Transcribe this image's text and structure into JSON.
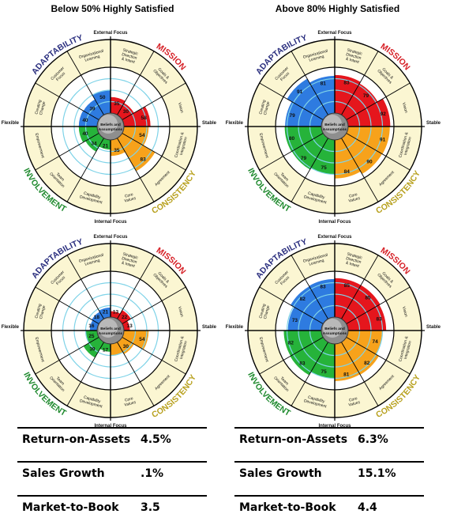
{
  "columns": [
    {
      "title": "Below 50% Highly Satisfied"
    },
    {
      "title": "Above 80% Highly Satisfied"
    }
  ],
  "labels": {
    "external": "External Focus",
    "internal": "Internal Focus",
    "flexible": "Flexible",
    "stable": "Stable",
    "center": [
      "Beliefs and",
      "Assumptions"
    ],
    "traits": [
      "ADAPTABILITY",
      "MISSION",
      "CONSISTENCY",
      "INVOLVEMENT"
    ]
  },
  "indices": [
    {
      "lines": [
        "Strategic",
        "Direction",
        "& Intent"
      ]
    },
    {
      "lines": [
        "Goals &",
        "Objectives"
      ]
    },
    {
      "lines": [
        "Vision"
      ]
    },
    {
      "lines": [
        "Coordination &",
        "Integration"
      ]
    },
    {
      "lines": [
        "Agreement"
      ]
    },
    {
      "lines": [
        "Core",
        "Values"
      ]
    },
    {
      "lines": [
        "Capability",
        "Development"
      ]
    },
    {
      "lines": [
        "Team",
        "Orientation"
      ]
    },
    {
      "lines": [
        "Empowerment"
      ]
    },
    {
      "lines": [
        "Creating",
        "Change"
      ]
    },
    {
      "lines": [
        "Customer",
        "Focus"
      ]
    },
    {
      "lines": [
        "Organizational",
        "Learning"
      ]
    }
  ],
  "colors": {
    "mission": "#e5161d",
    "consistency": "#f7a21b",
    "involvement": "#26b33a",
    "adaptability": "#2e7be0",
    "mission_text": "#d61f26",
    "consistency_text": "#b8a11f",
    "involvement_text": "#1f8a2e",
    "adaptability_text": "#2b2f7f",
    "ring": "#fbf6d2",
    "grid": "#7fd3e8"
  },
  "chart_data": [
    {
      "type": "radial",
      "title": "Below 50% Highly Satisfied",
      "values": [
        35,
        30,
        58,
        54,
        83,
        35,
        21,
        34,
        40,
        40,
        39,
        50
      ],
      "value_labels": [
        "35",
        "30",
        "58",
        "54",
        "83",
        "35",
        "21",
        "34",
        "40",
        "40",
        "39",
        "50"
      ]
    },
    {
      "type": "radial",
      "title": "Above 80% Highly Satisfied",
      "values": [
        83,
        79,
        92,
        91,
        90,
        84,
        75,
        79,
        80,
        79,
        91,
        81
      ],
      "value_labels": [
        "83",
        "79",
        "92",
        "91",
        "90",
        "84",
        "75",
        "79",
        "80",
        "79",
        "91",
        "81"
      ]
    },
    {
      "type": "radial",
      "title": "",
      "values": [
        13,
        22,
        13,
        54,
        30,
        25,
        17,
        39,
        25,
        16,
        18,
        21
      ],
      "value_labels": [
        "13",
        "22",
        "13",
        "54",
        "30",
        "",
        "17",
        "39",
        "25",
        "16",
        "18",
        "21"
      ]
    },
    {
      "type": "radial",
      "title": "",
      "values": [
        85,
        85,
        83,
        74,
        82,
        81,
        75,
        83,
        82,
        73,
        82,
        83
      ],
      "value_labels": [
        "85",
        "85",
        "83",
        "74",
        "82",
        "81",
        "75",
        "83",
        "82",
        "73",
        "82",
        "83"
      ]
    }
  ],
  "metrics": [
    {
      "rows": [
        {
          "name": "Return-on-Assets",
          "value": "4.5%"
        },
        {
          "name": "Sales Growth",
          "value": ".1%"
        },
        {
          "name": "Market-to-Book",
          "value": "3.5"
        }
      ]
    },
    {
      "rows": [
        {
          "name": "Return-on-Assets",
          "value": "6.3%"
        },
        {
          "name": "Sales Growth",
          "value": "15.1%"
        },
        {
          "name": "Market-to-Book",
          "value": "4.4"
        }
      ]
    }
  ]
}
